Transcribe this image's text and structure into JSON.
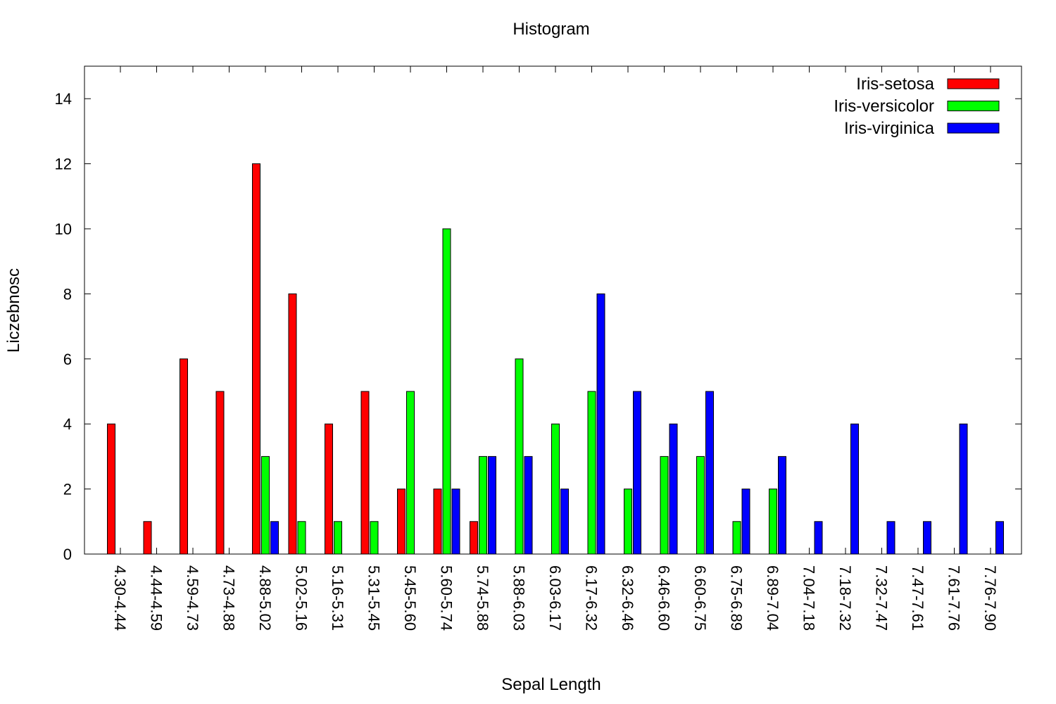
{
  "chart_data": {
    "type": "bar",
    "title": "Histogram",
    "xlabel": "Sepal Length",
    "ylabel": "Liczebnosc",
    "ylim": [
      0,
      15
    ],
    "yticks": [
      0,
      2,
      4,
      6,
      8,
      10,
      12,
      14
    ],
    "grid": false,
    "legend_position": "top-right",
    "categories": [
      "4.30-4.44",
      "4.44-4.59",
      "4.59-4.73",
      "4.73-4.88",
      "4.88-5.02",
      "5.02-5.16",
      "5.16-5.31",
      "5.31-5.45",
      "5.45-5.60",
      "5.60-5.74",
      "5.74-5.88",
      "5.88-6.03",
      "6.03-6.17",
      "6.17-6.32",
      "6.32-6.46",
      "6.46-6.60",
      "6.60-6.75",
      "6.75-6.89",
      "6.89-7.04",
      "7.04-7.18",
      "7.18-7.32",
      "7.32-7.47",
      "7.47-7.61",
      "7.61-7.76",
      "7.76-7.90"
    ],
    "series": [
      {
        "name": "Iris-setosa",
        "color": "#ff0000",
        "values": [
          4,
          1,
          6,
          5,
          12,
          8,
          4,
          5,
          2,
          2,
          1,
          0,
          0,
          0,
          0,
          0,
          0,
          0,
          0,
          0,
          0,
          0,
          0,
          0,
          0
        ]
      },
      {
        "name": "Iris-versicolor",
        "color": "#00ff00",
        "values": [
          0,
          0,
          0,
          0,
          3,
          1,
          1,
          1,
          5,
          10,
          3,
          6,
          4,
          5,
          2,
          3,
          3,
          1,
          2,
          0,
          0,
          0,
          0,
          0,
          0
        ]
      },
      {
        "name": "Iris-virginica",
        "color": "#0000ff",
        "values": [
          0,
          0,
          0,
          0,
          1,
          0,
          0,
          0,
          0,
          2,
          3,
          3,
          2,
          8,
          5,
          4,
          5,
          2,
          3,
          1,
          4,
          1,
          1,
          4,
          1
        ]
      }
    ]
  }
}
